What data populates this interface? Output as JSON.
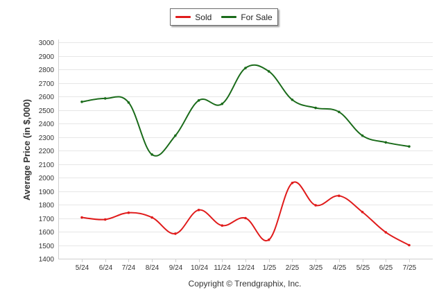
{
  "legend": [
    {
      "name": "Sold",
      "color": "#e01b1b"
    },
    {
      "name": "For Sale",
      "color": "#1a6b1a"
    }
  ],
  "copyright": "Copyright © Trendgraphix, Inc.",
  "chart_data": {
    "type": "line",
    "title": "",
    "ylabel": "Average Price (in $,000)",
    "xlabel": "",
    "ylim": [
      1400,
      3000
    ],
    "yticks": [
      1400,
      1500,
      1600,
      1700,
      1800,
      1900,
      2000,
      2100,
      2200,
      2300,
      2400,
      2500,
      2600,
      2700,
      2800,
      2900,
      3000
    ],
    "categories": [
      "5/24",
      "6/24",
      "7/24",
      "8/24",
      "9/24",
      "10/24",
      "11/24",
      "12/24",
      "1/25",
      "2/25",
      "3/25",
      "4/25",
      "5/25",
      "6/25",
      "7/25"
    ],
    "grid": "horizontal",
    "legend_position": "top-center",
    "series": [
      {
        "name": "Sold",
        "color": "#e01b1b",
        "values": [
          1705,
          1690,
          1740,
          1705,
          1585,
          1760,
          1645,
          1700,
          1540,
          1960,
          1795,
          1865,
          1745,
          1595,
          1500
        ]
      },
      {
        "name": "For Sale",
        "color": "#1a6b1a",
        "values": [
          2560,
          2585,
          2555,
          2170,
          2310,
          2570,
          2545,
          2810,
          2785,
          2575,
          2515,
          2485,
          2310,
          2260,
          2230
        ]
      }
    ]
  }
}
